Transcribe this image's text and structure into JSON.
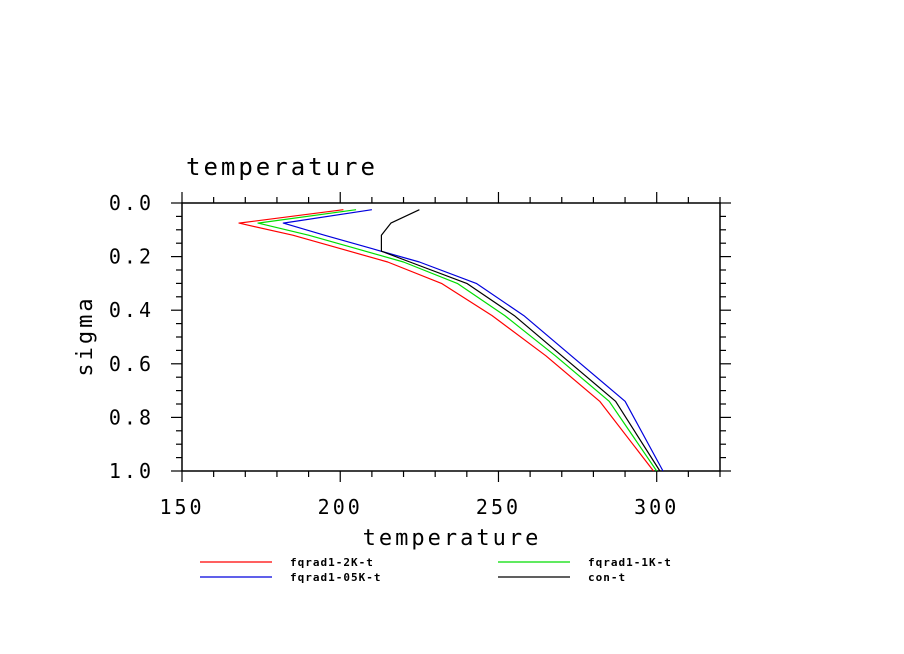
{
  "chart_data": {
    "type": "line",
    "title": "temperature",
    "xlabel": "temperature",
    "ylabel": "sigma",
    "xlim": [
      150,
      320
    ],
    "ylim": [
      0.0,
      1.0
    ],
    "y_inverted": true,
    "x_ticks": [
      "150",
      "200",
      "250",
      "300"
    ],
    "y_ticks": [
      "0.0",
      "0.2",
      "0.4",
      "0.6",
      "0.8",
      "1.0"
    ],
    "grid": false,
    "legend_position": "bottom",
    "series": [
      {
        "name": "fqrad1-2K-t",
        "color": "#ff0000",
        "x": [
          201,
          168,
          185,
          200,
          215,
          232,
          248,
          265,
          282,
          299
        ],
        "y": [
          0.025,
          0.075,
          0.12,
          0.17,
          0.22,
          0.3,
          0.42,
          0.57,
          0.74,
          1.0
        ]
      },
      {
        "name": "fqrad1-1K-t",
        "color": "#00dd00",
        "x": [
          205,
          174,
          190,
          205,
          220,
          237,
          252,
          268,
          285,
          300
        ],
        "y": [
          0.025,
          0.075,
          0.12,
          0.17,
          0.22,
          0.3,
          0.42,
          0.57,
          0.74,
          1.0
        ]
      },
      {
        "name": "fqrad1-05K-t",
        "color": "#0000dd",
        "x": [
          210,
          182,
          195,
          210,
          225,
          243,
          258,
          273,
          290,
          302
        ],
        "y": [
          0.025,
          0.075,
          0.12,
          0.17,
          0.22,
          0.3,
          0.42,
          0.57,
          0.74,
          1.0
        ]
      },
      {
        "name": "con-t",
        "color": "#000000",
        "x": [
          225,
          216,
          213,
          213,
          222,
          240,
          255,
          270,
          287,
          301
        ],
        "y": [
          0.025,
          0.075,
          0.12,
          0.18,
          0.22,
          0.3,
          0.42,
          0.57,
          0.74,
          1.0
        ]
      }
    ]
  }
}
